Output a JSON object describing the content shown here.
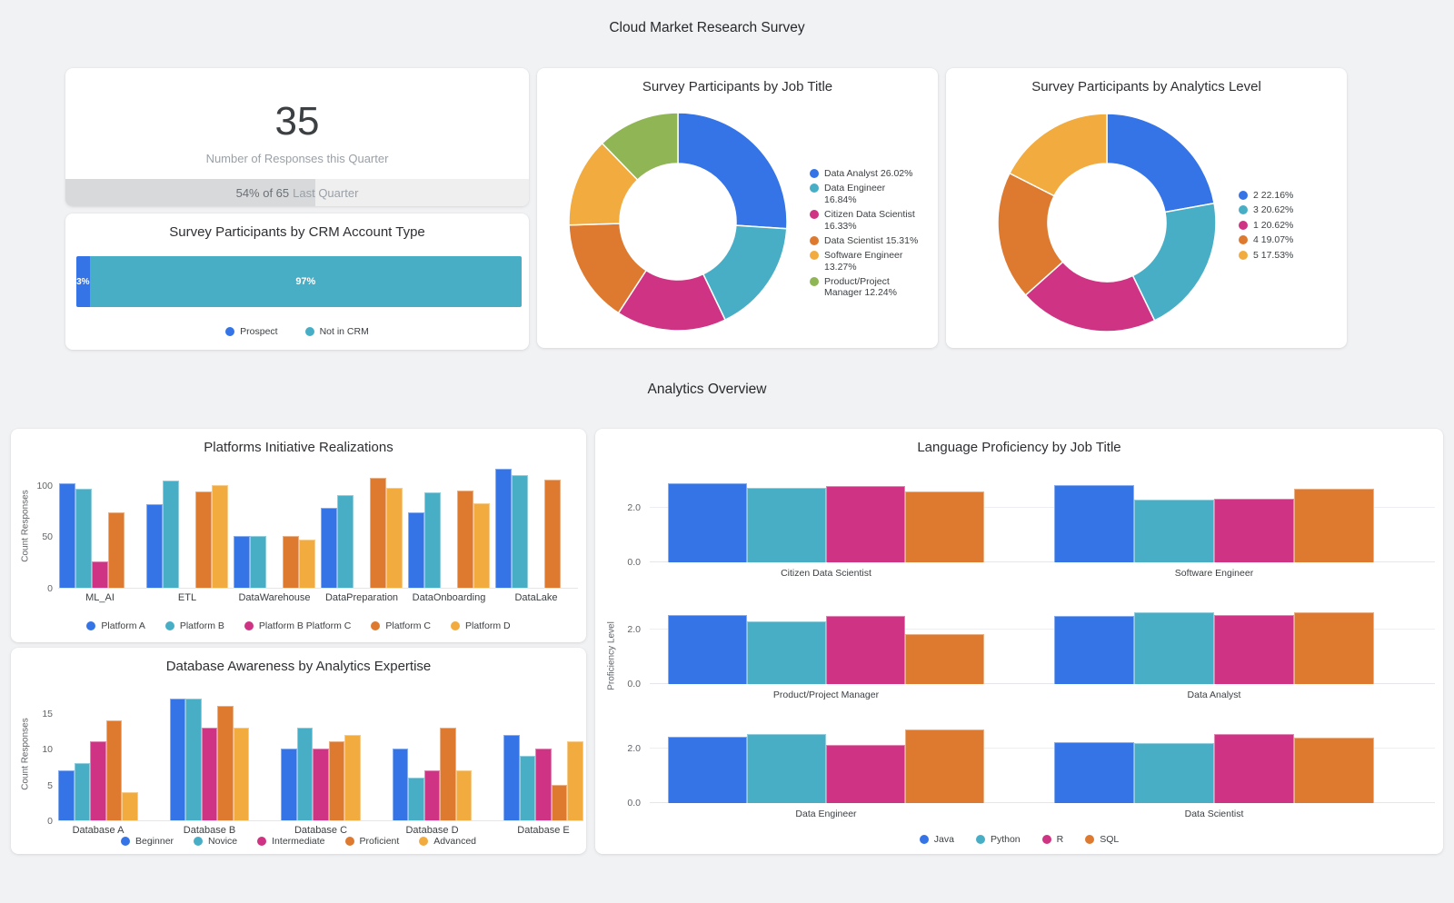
{
  "page": {
    "title": "Cloud Market Research Survey",
    "section_title": "Analytics Overview"
  },
  "colors": {
    "blue": "#3474e6",
    "teal": "#48aec6",
    "magenta": "#cf3383",
    "orange": "#dd7a30",
    "amber": "#f2ab3e",
    "green": "#90b554",
    "page_bg": "#f1f2f4",
    "card_bg": "#ffffff",
    "text_dark": "#3c4043",
    "text_gray": "#5f6368",
    "text_muted": "#9aa0a6",
    "progress_track": "#efeff0",
    "progress_fill": "#d8d9da"
  },
  "scorecard": {
    "value": "35",
    "label": "Number of Responses this Quarter",
    "progress_strong": "54% of 65",
    "progress_light": "Last Quarter",
    "progress_pct": 54
  },
  "chart_data": [
    {
      "id": "crm-account-type",
      "type": "bar",
      "orientation": "horizontal-stacked",
      "title": "Survey Participants by CRM Account Type",
      "segments": [
        {
          "label": "Prospect",
          "pct": 3,
          "display": "3%",
          "color_key": "blue"
        },
        {
          "label": "Not in CRM",
          "pct": 97,
          "display": "97%",
          "color_key": "teal"
        }
      ]
    },
    {
      "id": "job-title-donut",
      "type": "pie",
      "donut": true,
      "title": "Survey Participants by Job Title",
      "legend_position": "right",
      "slices": [
        {
          "label": "Data Analyst",
          "pct": 26.02,
          "legend": "Data Analyst 26.02%",
          "color_key": "blue"
        },
        {
          "label": "Data Engineer",
          "pct": 16.84,
          "legend": "Data Engineer 16.84%",
          "color_key": "teal"
        },
        {
          "label": "Citizen Data Scientist",
          "pct": 16.33,
          "legend": "Citizen Data Scientist 16.33%",
          "color_key": "magenta"
        },
        {
          "label": "Data Scientist",
          "pct": 15.31,
          "legend": "Data Scientist 15.31%",
          "color_key": "orange"
        },
        {
          "label": "Software Engineer",
          "pct": 13.27,
          "legend": "Software Engineer 13.27%",
          "color_key": "amber"
        },
        {
          "label": "Product/Project Manager",
          "pct": 12.24,
          "legend": "Product/Project Manager 12.24%",
          "color_key": "green"
        }
      ]
    },
    {
      "id": "analytics-level-donut",
      "type": "pie",
      "donut": true,
      "title": "Survey Participants by Analytics Level",
      "legend_position": "right",
      "slices": [
        {
          "label": "2",
          "pct": 22.16,
          "legend": "2 22.16%",
          "color_key": "blue"
        },
        {
          "label": "3",
          "pct": 20.62,
          "legend": "3 20.62%",
          "color_key": "teal"
        },
        {
          "label": "1",
          "pct": 20.62,
          "legend": "1 20.62%",
          "color_key": "magenta"
        },
        {
          "label": "4",
          "pct": 19.07,
          "legend": "4 19.07%",
          "color_key": "orange"
        },
        {
          "label": "5",
          "pct": 17.53,
          "legend": "5 17.53%",
          "color_key": "amber"
        }
      ]
    },
    {
      "id": "platforms-initiative",
      "type": "bar",
      "grouped": true,
      "title": "Platforms Initiative Realizations",
      "ylabel": "Count Responses",
      "yticks": [
        "0",
        "50",
        "100"
      ],
      "ymax": 122,
      "categories": [
        "ML_AI",
        "ETL",
        "DataWarehouse",
        "DataPreparation",
        "DataOnboarding",
        "DataLake"
      ],
      "series": [
        {
          "name": "Platform A",
          "color_key": "blue",
          "values": [
            102,
            81,
            50,
            78,
            73,
            116
          ]
        },
        {
          "name": "Platform B",
          "color_key": "teal",
          "values": [
            96,
            104,
            50,
            90,
            93,
            110
          ]
        },
        {
          "name": "Platform B Platform C",
          "color_key": "magenta",
          "values": [
            26,
            null,
            null,
            null,
            null,
            null
          ]
        },
        {
          "name": "Platform C",
          "color_key": "orange",
          "values": [
            73,
            94,
            50,
            107,
            95,
            105
          ]
        },
        {
          "name": "Platform D",
          "color_key": "amber",
          "values": [
            null,
            100,
            47,
            97,
            82,
            null
          ]
        }
      ]
    },
    {
      "id": "database-awareness",
      "type": "bar",
      "grouped": true,
      "title": "Database Awareness by Analytics Expertise",
      "ylabel": "Count Responses",
      "yticks": [
        "0",
        "5",
        "10",
        "15"
      ],
      "ymax": 18.8,
      "categories": [
        "Database A",
        "Database B",
        "Database C",
        "Database D",
        "Database E"
      ],
      "series": [
        {
          "name": "Beginner",
          "color_key": "blue",
          "values": [
            7,
            17,
            10,
            10,
            12
          ]
        },
        {
          "name": "Novice",
          "color_key": "teal",
          "values": [
            8,
            17,
            13,
            6,
            9
          ]
        },
        {
          "name": "Intermediate",
          "color_key": "magenta",
          "values": [
            11,
            13,
            10,
            7,
            10
          ]
        },
        {
          "name": "Proficient",
          "color_key": "orange",
          "values": [
            14,
            16,
            11,
            13,
            5
          ]
        },
        {
          "name": "Advanced",
          "color_key": "amber",
          "values": [
            4,
            13,
            12,
            7,
            11
          ]
        }
      ]
    },
    {
      "id": "language-proficiency",
      "type": "bar",
      "small_multiples": true,
      "title": "Language Proficiency by Job Title",
      "ylabel": "Proficiency Level",
      "yticks": [
        "0.0",
        "2.0"
      ],
      "ymax": 3.0,
      "series_names": [
        "Java",
        "Python",
        "R",
        "SQL"
      ],
      "series_colors": [
        "blue",
        "teal",
        "magenta",
        "orange"
      ],
      "subplots": [
        {
          "label": "Citizen Data Scientist",
          "values": [
            2.9,
            2.75,
            2.8,
            2.6
          ]
        },
        {
          "label": "Software Engineer",
          "values": [
            2.85,
            2.3,
            2.35,
            2.7
          ]
        },
        {
          "label": "Product/Project Manager",
          "values": [
            2.55,
            2.3,
            2.5,
            1.85
          ]
        },
        {
          "label": "Data Analyst",
          "values": [
            2.5,
            2.65,
            2.55,
            2.65
          ]
        },
        {
          "label": "Data Engineer",
          "values": [
            2.45,
            2.55,
            2.15,
            2.7
          ]
        },
        {
          "label": "Data Scientist",
          "values": [
            2.25,
            2.2,
            2.55,
            2.4
          ]
        }
      ]
    }
  ]
}
